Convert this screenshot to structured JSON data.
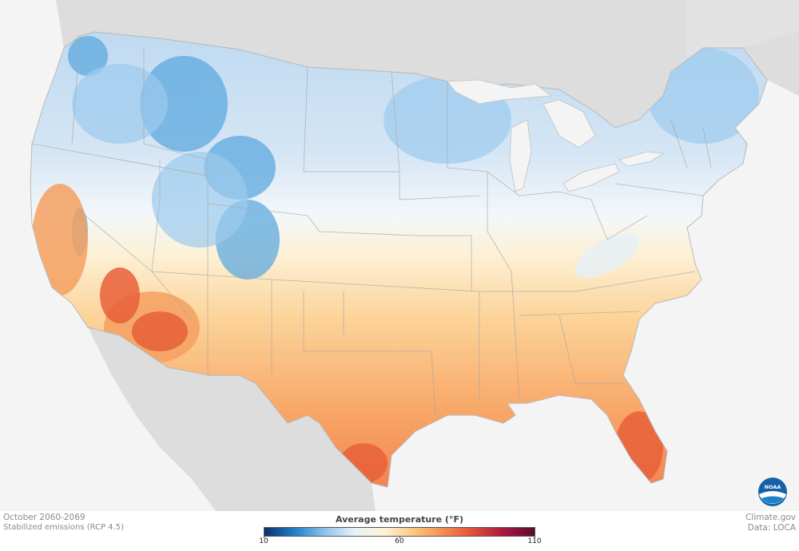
{
  "period": "October 2060-2069",
  "scenario": "Stabilized emissions (RCP 4.5)",
  "credit": "Climate.gov",
  "source": "Data: LOCA",
  "legend": {
    "title": "Average temperature (°F)",
    "ticks": [
      "10",
      "60",
      "110"
    ],
    "min": 10,
    "max": 110,
    "colors": [
      "#0b2f6b",
      "#1f7fc7",
      "#8cc3ec",
      "#e8f1fa",
      "#fff3d6",
      "#fbc57a",
      "#f58a4d",
      "#e04a3a",
      "#a8173f",
      "#5b0a2e"
    ]
  },
  "logo": {
    "text": "NOAA"
  },
  "colors": {
    "ocean": "#f4f4f4",
    "land_outside": "#dcdcdc",
    "cold": "#6fb0e2",
    "cool": "#bcd9f1",
    "mild": "#f3f7fb",
    "warm": "#fcd9a0",
    "hot": "#f5924f",
    "hottest": "#e8683c"
  }
}
